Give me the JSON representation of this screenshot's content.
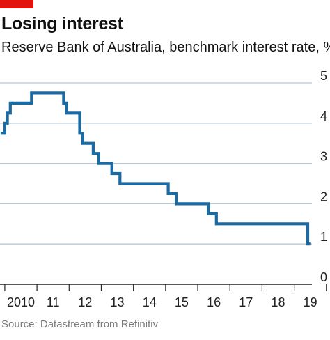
{
  "header": {
    "title": "Losing interest",
    "subtitle": "Reserve Bank of Australia, benchmark interest rate, %",
    "accent_color": "#e3120b"
  },
  "footer": {
    "source": "Source: Datastream from Refinitiv"
  },
  "colors": {
    "line": "#1a6aa3",
    "grid": "#b8c7d1",
    "axis": "#222222",
    "text": "#222222"
  },
  "chart_data": {
    "type": "line",
    "step": true,
    "title": "Losing interest",
    "subtitle": "Reserve Bank of Australia, benchmark interest rate, %",
    "xlabel": "",
    "ylabel": "",
    "xlim": [
      2009.85,
      2019.55
    ],
    "ylim": [
      0,
      5
    ],
    "grid": true,
    "y_ticks": [
      0,
      1,
      2,
      3,
      4,
      5
    ],
    "x_ticks": [
      {
        "value": 2010,
        "label": "2010"
      },
      {
        "value": 2011,
        "label": "11"
      },
      {
        "value": 2012,
        "label": "12"
      },
      {
        "value": 2013,
        "label": "13"
      },
      {
        "value": 2014,
        "label": "14"
      },
      {
        "value": 2015,
        "label": "15"
      },
      {
        "value": 2016,
        "label": "16"
      },
      {
        "value": 2017,
        "label": "17"
      },
      {
        "value": 2018,
        "label": "18"
      },
      {
        "value": 2019,
        "label": "19"
      }
    ],
    "series": [
      {
        "x": [
          2009.87,
          2010.0,
          2010.08,
          2010.17,
          2010.33,
          2010.83,
          2011.5,
          2011.83,
          2011.92,
          2012.33,
          2012.42,
          2012.75,
          2012.92,
          2013.33,
          2013.58,
          2014.58,
          2015.08,
          2015.33,
          2016.0,
          2016.33,
          2016.58,
          2019.05,
          2019.42,
          2019.5
        ],
        "y": [
          3.75,
          4.0,
          4.25,
          4.5,
          4.5,
          4.75,
          4.75,
          4.5,
          4.25,
          3.75,
          3.5,
          3.25,
          3.0,
          2.75,
          2.5,
          2.5,
          2.25,
          2.0,
          2.0,
          1.75,
          1.5,
          1.5,
          1.0,
          1.0
        ]
      }
    ]
  }
}
